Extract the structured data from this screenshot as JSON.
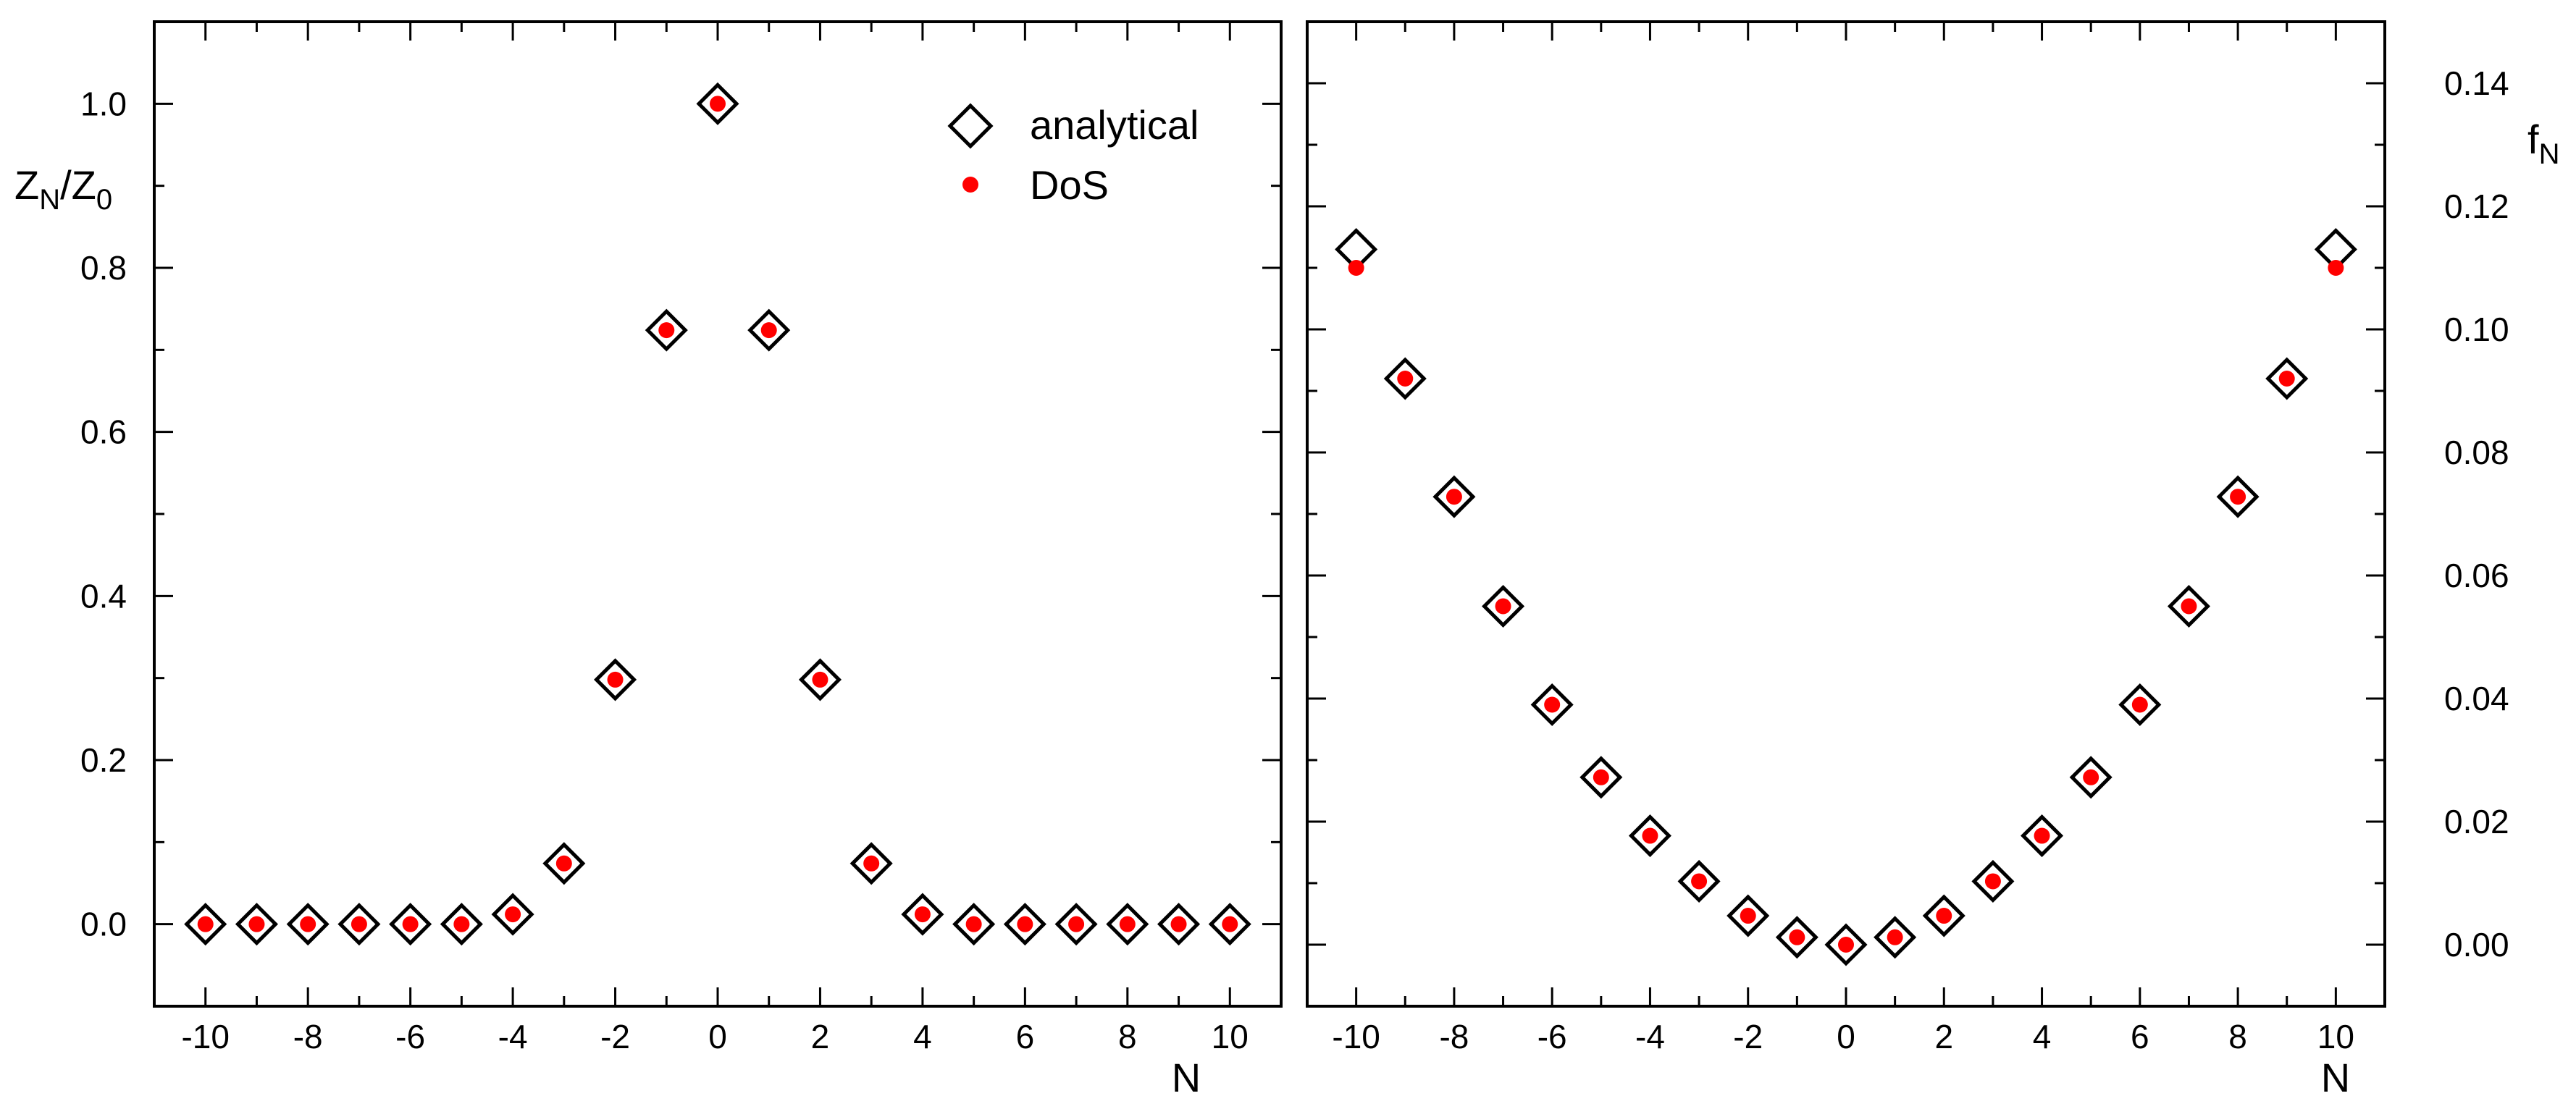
{
  "chart_data": [
    {
      "type": "scatter",
      "xlabel": "N",
      "ylabel_main": "Z",
      "ylabel_sub1": "N",
      "ylabel_mid": "/Z",
      "ylabel_sub2": "0",
      "xlim": [
        -11,
        11
      ],
      "ylim": [
        -0.1,
        1.1
      ],
      "x_ticks": [
        -10,
        -8,
        -6,
        -4,
        -2,
        0,
        2,
        4,
        6,
        8,
        10
      ],
      "x_tick_labels": [
        "-10",
        "-8",
        "-6",
        "-4",
        "-2",
        "0",
        "2",
        "4",
        "6",
        "8",
        "10"
      ],
      "y_ticks": [
        0.0,
        0.2,
        0.4,
        0.6,
        0.8,
        1.0
      ],
      "y_tick_labels": [
        "0.0",
        "0.2",
        "0.4",
        "0.6",
        "0.8",
        "1.0"
      ],
      "legend": {
        "position": "top-right",
        "entries": [
          "analytical",
          "DoS"
        ]
      },
      "series": [
        {
          "name": "analytical",
          "marker": "diamond",
          "x": [
            -10,
            -9,
            -8,
            -7,
            -6,
            -5,
            -4,
            -3,
            -2,
            -1,
            0,
            1,
            2,
            3,
            4,
            5,
            6,
            7,
            8,
            9,
            10
          ],
          "y": [
            0.0,
            0.0,
            0.0,
            0.0,
            0.0,
            0.0,
            0.012,
            0.074,
            0.298,
            0.724,
            1.0,
            0.724,
            0.298,
            0.074,
            0.012,
            0.0,
            0.0,
            0.0,
            0.0,
            0.0,
            0.0
          ]
        },
        {
          "name": "DoS",
          "marker": "dot",
          "color": "#ff0000",
          "x": [
            -10,
            -9,
            -8,
            -7,
            -6,
            -5,
            -4,
            -3,
            -2,
            -1,
            0,
            1,
            2,
            3,
            4,
            5,
            6,
            7,
            8,
            9,
            10
          ],
          "y": [
            0.0,
            0.0,
            0.0,
            0.0,
            0.0,
            0.0,
            0.012,
            0.074,
            0.298,
            0.724,
            1.0,
            0.724,
            0.298,
            0.074,
            0.012,
            0.0,
            0.0,
            0.0,
            0.0,
            0.0,
            0.0
          ]
        }
      ]
    },
    {
      "type": "scatter",
      "xlabel": "N",
      "ylabel_main": "f",
      "ylabel_sub1": "N",
      "xlim": [
        -11,
        11
      ],
      "ylim": [
        -0.01,
        0.15
      ],
      "y_axis_side": "right",
      "x_ticks": [
        -10,
        -8,
        -6,
        -4,
        -2,
        0,
        2,
        4,
        6,
        8,
        10
      ],
      "x_tick_labels": [
        "-10",
        "-8",
        "-6",
        "-4",
        "-2",
        "0",
        "2",
        "4",
        "6",
        "8",
        "10"
      ],
      "y_ticks": [
        0.0,
        0.02,
        0.04,
        0.06,
        0.08,
        0.1,
        0.12,
        0.14
      ],
      "y_tick_labels": [
        "0.00",
        "0.02",
        "0.04",
        "0.06",
        "0.08",
        "0.10",
        "0.12",
        "0.14"
      ],
      "series": [
        {
          "name": "analytical",
          "marker": "diamond",
          "x": [
            -10,
            -9,
            -8,
            -7,
            -6,
            -5,
            -4,
            -3,
            -2,
            -1,
            0,
            1,
            2,
            3,
            4,
            5,
            6,
            7,
            8,
            9,
            10
          ],
          "y": [
            0.113,
            0.092,
            0.0728,
            0.055,
            0.039,
            0.0272,
            0.0177,
            0.0103,
            0.0047,
            0.0012,
            0.0,
            0.0012,
            0.0047,
            0.0103,
            0.0177,
            0.0272,
            0.039,
            0.055,
            0.0728,
            0.092,
            0.113
          ]
        },
        {
          "name": "DoS",
          "marker": "dot",
          "color": "#ff0000",
          "x": [
            -10,
            -9,
            -8,
            -7,
            -6,
            -5,
            -4,
            -3,
            -2,
            -1,
            0,
            1,
            2,
            3,
            4,
            5,
            6,
            7,
            8,
            9,
            10
          ],
          "y": [
            0.11,
            0.092,
            0.0728,
            0.055,
            0.039,
            0.0272,
            0.0177,
            0.0103,
            0.0047,
            0.0012,
            0.0,
            0.0012,
            0.0047,
            0.0103,
            0.0177,
            0.0272,
            0.039,
            0.055,
            0.0728,
            0.092,
            0.11
          ]
        }
      ]
    }
  ]
}
